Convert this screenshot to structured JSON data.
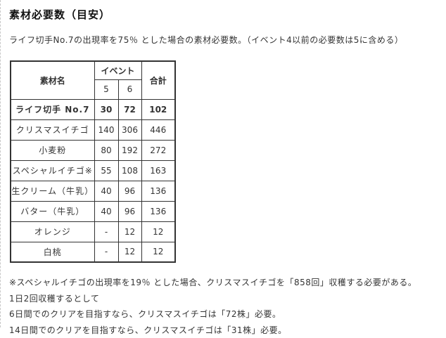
{
  "page": {
    "title": "素材必要数（目安）",
    "intro": "ライフ切手No.7の出現率を75％ とした場合の素材必要数。（イベント4以前の必要数は5に含める）"
  },
  "table": {
    "headers": {
      "material": "素材名",
      "event": "イベント",
      "event_5": "5",
      "event_6": "6",
      "total": "合計"
    },
    "rows": [
      {
        "name": "ライフ切手 No.7",
        "e5": "30",
        "e6": "72",
        "total": "102"
      },
      {
        "name": "クリスマスイチゴ",
        "e5": "140",
        "e6": "306",
        "total": "446"
      },
      {
        "name": "小麦粉",
        "e5": "80",
        "e6": "192",
        "total": "272"
      },
      {
        "name": "スペシャルイチゴ※",
        "e5": "55",
        "e6": "108",
        "total": "163"
      },
      {
        "name": "生クリーム（牛乳）",
        "e5": "40",
        "e6": "96",
        "total": "136"
      },
      {
        "name": "バター（牛乳）",
        "e5": "40",
        "e6": "96",
        "total": "136"
      },
      {
        "name": "オレンジ",
        "e5": "-",
        "e6": "12",
        "total": "12"
      },
      {
        "name": "白桃",
        "e5": "-",
        "e6": "12",
        "total": "12"
      }
    ]
  },
  "footnotes": [
    "※スペシャルイチゴの出現率を19％ とした場合、クリスマスイチゴを「858回」収穫する必要がある。",
    "1日2回収穫するとして",
    "6日間でのクリアを目指すなら、クリスマスイチゴは「72株」必要。",
    "14日間でのクリアを目指すなら、クリスマスイチゴは「31株」必要。"
  ],
  "colors": {
    "text": "#333333",
    "title": "#111111",
    "table_border": "#333333",
    "page_edge_dashed": "#c8c8c8",
    "background": "#ffffff"
  }
}
